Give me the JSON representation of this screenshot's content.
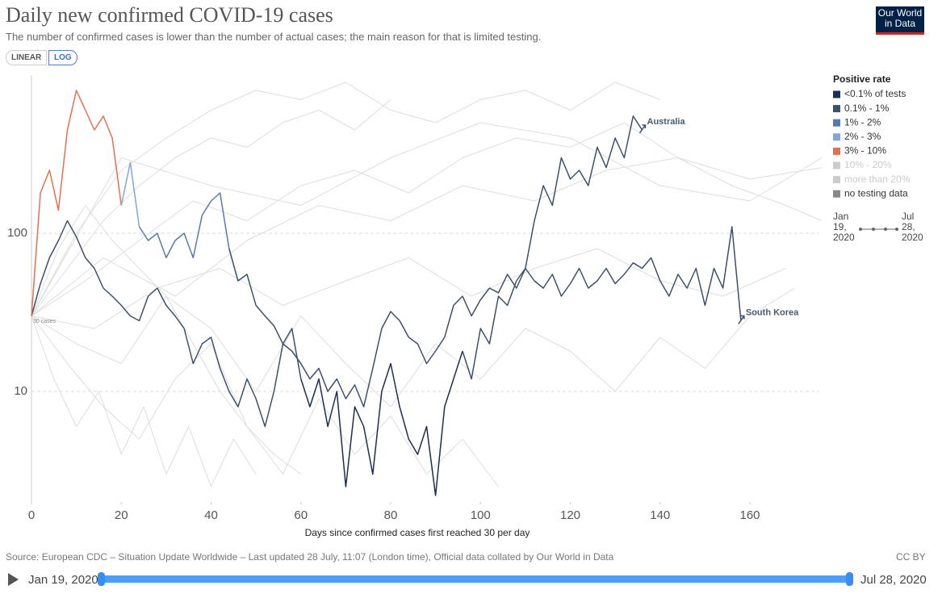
{
  "header": {
    "title": "Daily new confirmed COVID-19 cases",
    "subtitle": "The number of confirmed cases is lower than the number of actual cases; the main reason for that is limited testing.",
    "buttons": [
      "LINEAR",
      "LOG"
    ],
    "logo": "Our World in Data"
  },
  "chart_data": {
    "type": "line",
    "x_label": "Days since confirmed cases first reached 30 per day",
    "log_scale": "y",
    "grid": true,
    "xlim": [
      0,
      176
    ],
    "xticks": [
      0,
      20,
      40,
      60,
      80,
      100,
      120,
      140,
      160
    ],
    "ylim": [
      2,
      1000
    ],
    "yticks": [
      10,
      100
    ],
    "annotation": "30 cases",
    "legend_title": "Positive rate",
    "legend": [
      {
        "label": "<0.1% of tests",
        "color": "#1b2f52"
      },
      {
        "label": "0.1% - 1%",
        "color": "#3d5069"
      },
      {
        "label": "1% - 2%",
        "color": "#5a78b0"
      },
      {
        "label": "2% - 3%",
        "color": "#86a4d8"
      },
      {
        "label": "3% - 10%",
        "color": "#e5704f"
      },
      {
        "label": "10% - 20%",
        "color": "#cccccc",
        "muted": true
      },
      {
        "label": "more than 20%",
        "color": "#cccccc",
        "muted": true
      },
      {
        "label": "no testing data",
        "color": "#888888"
      }
    ],
    "x": [
      0,
      2,
      4,
      6,
      8,
      10,
      12,
      14,
      16,
      18,
      20,
      22,
      24,
      26,
      28,
      30,
      32,
      34,
      36,
      38,
      40,
      42,
      44,
      46,
      48,
      50,
      52,
      54,
      56,
      58,
      60,
      62,
      64,
      66,
      68,
      70,
      72,
      74,
      76,
      78,
      80,
      82,
      84,
      86,
      88,
      90,
      92,
      94,
      96,
      98,
      100,
      102,
      104,
      106,
      108,
      110,
      112,
      114,
      116,
      118,
      120,
      122,
      124,
      126,
      128,
      130,
      132,
      134,
      136,
      138,
      140,
      142,
      144,
      146,
      148,
      150,
      152,
      154,
      156,
      158,
      160,
      162,
      164,
      166,
      168,
      170,
      172,
      174,
      176
    ],
    "series": [
      {
        "name": "Australia",
        "values": [
          30,
          48,
          70,
          90,
          120,
          95,
          70,
          60,
          45,
          40,
          35,
          30,
          28,
          40,
          45,
          35,
          30,
          25,
          15,
          20,
          22,
          14,
          10,
          8,
          12,
          9,
          6,
          10,
          20,
          25,
          12,
          8,
          12,
          6,
          10,
          2.5,
          8,
          6,
          3,
          10,
          15,
          8,
          5,
          4,
          6,
          2.2,
          8,
          12,
          18,
          12,
          25,
          20,
          40,
          35,
          50,
          60,
          120,
          200,
          150,
          300,
          220,
          250,
          200,
          350,
          260,
          400,
          300,
          550,
          450,
          null,
          null,
          null,
          null,
          null,
          null,
          null,
          null,
          null,
          null,
          null,
          null,
          null,
          null,
          null,
          null,
          null,
          null,
          null,
          null
        ],
        "segments": [
          {
            "from": 0,
            "to": 30,
            "color": "#3d5069"
          },
          {
            "from": 30,
            "to": 48,
            "color": "#1b2f52"
          },
          {
            "from": 48,
            "to": 68,
            "color": "#3d5069"
          }
        ]
      },
      {
        "name": "South Korea",
        "values": [
          30,
          180,
          250,
          140,
          450,
          800,
          600,
          450,
          550,
          400,
          150,
          280,
          110,
          90,
          100,
          70,
          90,
          100,
          70,
          130,
          160,
          180,
          80,
          50,
          55,
          35,
          30,
          26,
          20,
          18,
          15,
          12,
          14,
          10,
          12,
          9,
          11,
          8,
          14,
          25,
          32,
          28,
          22,
          20,
          15,
          18,
          22,
          35,
          40,
          30,
          38,
          45,
          42,
          55,
          45,
          60,
          50,
          45,
          55,
          40,
          48,
          60,
          45,
          50,
          60,
          48,
          55,
          65,
          60,
          70,
          50,
          40,
          55,
          45,
          60,
          35,
          60,
          45,
          110,
          28,
          null,
          null,
          null,
          null,
          null,
          null,
          null,
          null,
          null
        ],
        "segments": [
          {
            "from": 0,
            "to": 10,
            "color": "#e5704f"
          },
          {
            "from": 10,
            "to": 12,
            "color": "#86a4d8"
          },
          {
            "from": 12,
            "to": 22,
            "color": "#5a78b0"
          },
          {
            "from": 22,
            "to": 79,
            "color": "#3d5069"
          }
        ]
      }
    ],
    "background_color": "#dddddd",
    "background_series": [
      {
        "x": [
          0,
          8,
          16,
          24,
          32,
          40,
          48,
          56,
          64,
          72,
          80
        ],
        "values": [
          30,
          60,
          120,
          200,
          300,
          400,
          350,
          500,
          600,
          450,
          700
        ]
      },
      {
        "x": [
          0,
          10,
          20,
          30,
          40,
          50,
          60,
          70,
          80,
          90,
          100,
          110,
          120,
          130,
          140,
          150,
          160,
          170
        ],
        "values": [
          30,
          20,
          15,
          40,
          25,
          10,
          30,
          15,
          8,
          20,
          12,
          25,
          18,
          10,
          22,
          14,
          30,
          45
        ]
      },
      {
        "x": [
          0,
          6,
          12,
          18,
          24,
          30,
          36,
          42,
          48,
          54,
          60
        ],
        "values": [
          30,
          80,
          150,
          90,
          60,
          40,
          20,
          10,
          6,
          4,
          3
        ]
      },
      {
        "x": [
          0,
          10,
          20,
          30,
          40,
          50,
          60,
          70,
          80,
          90,
          100,
          110,
          120,
          130,
          140
        ],
        "values": [
          30,
          100,
          250,
          400,
          600,
          800,
          700,
          900,
          600,
          500,
          700,
          800,
          600,
          900,
          700
        ]
      },
      {
        "x": [
          0,
          8,
          16,
          24,
          32,
          40,
          48,
          56,
          64,
          72,
          80,
          88,
          96,
          104
        ],
        "values": [
          30,
          15,
          8,
          5,
          12,
          20,
          6,
          3,
          9,
          4,
          7,
          3,
          5,
          2.5
        ]
      },
      {
        "x": [
          0,
          20,
          40,
          60,
          80,
          100,
          120,
          140,
          160,
          176
        ],
        "values": [
          30,
          300,
          200,
          150,
          300,
          500,
          400,
          200,
          160,
          300
        ]
      },
      {
        "x": [
          0,
          12,
          24,
          36,
          48,
          60,
          72,
          84,
          96,
          108,
          120,
          132,
          144,
          156,
          168,
          176
        ],
        "values": [
          30,
          50,
          90,
          160,
          120,
          200,
          250,
          180,
          300,
          400,
          350,
          500,
          300,
          200,
          150,
          120
        ]
      },
      {
        "x": [
          0,
          14,
          28,
          42,
          56,
          70,
          84,
          98,
          112,
          126,
          140,
          154,
          168
        ],
        "values": [
          30,
          25,
          45,
          60,
          35,
          50,
          70,
          40,
          60,
          80,
          50,
          40,
          60
        ]
      },
      {
        "x": [
          0,
          5,
          10,
          15,
          20,
          25,
          30,
          35,
          40,
          45,
          50
        ],
        "values": [
          30,
          12,
          6,
          10,
          4,
          8,
          3,
          6,
          2.5,
          5,
          3
        ]
      },
      {
        "x": [
          0,
          16,
          32,
          48,
          64,
          80,
          96,
          112,
          128,
          144,
          160,
          176
        ],
        "values": [
          30,
          70,
          40,
          90,
          150,
          120,
          200,
          160,
          250,
          300,
          220,
          260
        ]
      }
    ]
  },
  "timeline": {
    "start": "Jan 19, 2020",
    "end": "Jul 28, 2020"
  },
  "footer": {
    "source": "Source: European CDC – Situation Update Worldwide – Last updated 28 July, 11:07 (London time), Official data collated by Our World in Data",
    "license": "CC BY"
  }
}
